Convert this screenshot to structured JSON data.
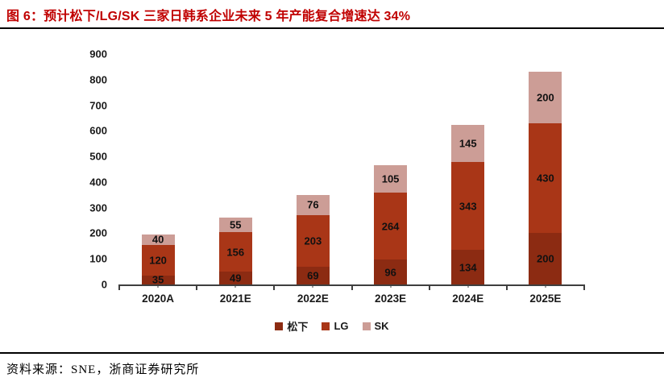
{
  "figure": {
    "title": "图 6：预计松下/LG/SK 三家日韩系企业未来 5 年产能复合增速达 34%",
    "title_color": "#C00000",
    "source": "资料来源：SNE，浙商证券研究所"
  },
  "chart_data": {
    "type": "bar",
    "stacked": true,
    "title": "预计松下/LG/SK 三家日韩系企业未来 5 年产能复合增速达 34%",
    "categories": [
      "2020A",
      "2021E",
      "2022E",
      "2023E",
      "2024E",
      "2025E"
    ],
    "series": [
      {
        "name": "松下",
        "key": "panasonic",
        "color": "#8C2B12",
        "values": [
          35,
          49,
          69,
          96,
          134,
          200
        ]
      },
      {
        "name": "LG",
        "key": "lg",
        "color": "#A93617",
        "values": [
          120,
          156,
          203,
          264,
          343,
          430
        ]
      },
      {
        "name": "SK",
        "key": "sk",
        "color": "#CC9D96",
        "values": [
          40,
          55,
          76,
          105,
          145,
          200
        ]
      }
    ],
    "totals": [
      195,
      260,
      348,
      465,
      622,
      830
    ],
    "xlabel": "",
    "ylabel": "",
    "ylim": [
      0,
      900
    ],
    "ytick_step": 100,
    "grid": false,
    "data_labels": true,
    "legend_position": "bottom",
    "axis_color": "#3F3F3F",
    "label_color": "#111111"
  }
}
